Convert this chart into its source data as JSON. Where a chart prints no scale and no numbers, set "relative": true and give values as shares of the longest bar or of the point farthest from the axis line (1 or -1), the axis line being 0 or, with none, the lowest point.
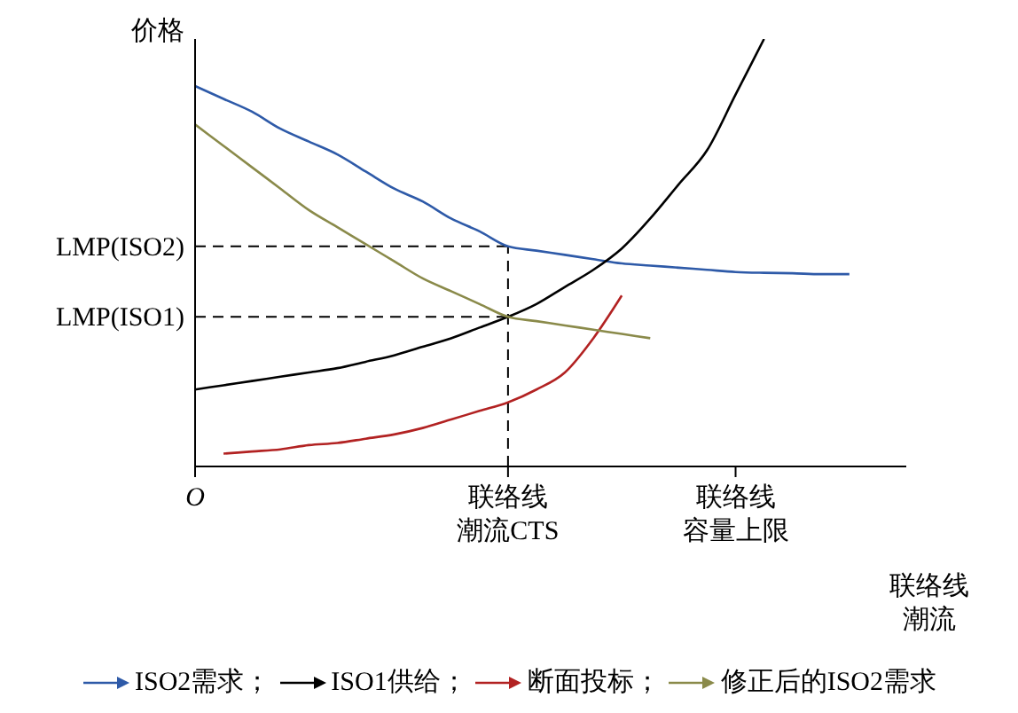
{
  "chart_data": {
    "type": "line",
    "relative": true,
    "ylabel": "价格",
    "xlabel": "联络线潮流",
    "marker": "none",
    "legend": "bottom",
    "grid": false,
    "categories": [
      "O",
      null,
      null,
      null,
      null,
      null,
      null,
      null,
      null,
      null,
      null,
      "联络线潮流CTS",
      null,
      null,
      null,
      null,
      null,
      null,
      null,
      "联络线容量上限",
      null,
      null,
      null,
      null,
      null,
      null
    ],
    "series": [
      {
        "name": "ISO2需求；",
        "color": "#2e5aa8",
        "values": [
          0.89,
          0.86,
          0.83,
          0.79,
          0.76,
          0.73,
          0.69,
          0.65,
          0.62,
          0.58,
          0.55,
          0.515,
          0.505,
          0.495,
          0.485,
          0.475,
          0.47,
          0.465,
          0.46,
          0.455,
          0.453,
          0.452,
          0.45,
          0.45,
          null,
          null
        ]
      },
      {
        "name": "ISO1供给；",
        "color": "#000000",
        "values": [
          0.18,
          0.19,
          0.2,
          0.21,
          0.22,
          0.23,
          0.245,
          0.26,
          0.28,
          0.3,
          0.325,
          0.35,
          0.38,
          0.42,
          0.46,
          0.51,
          0.58,
          0.66,
          0.74,
          0.87,
          1,
          null,
          null,
          null,
          null,
          null
        ]
      },
      {
        "name": "断面投标；",
        "color": "#b22222",
        "values": [
          null,
          0.03,
          0.035,
          0.04,
          0.05,
          0.055,
          0.065,
          0.075,
          0.09,
          0.11,
          0.13,
          0.15,
          0.18,
          0.22,
          0.3,
          0.4,
          null,
          null,
          null,
          null,
          null,
          null,
          null,
          null,
          null,
          null
        ]
      },
      {
        "name": "修正后的ISO2需求",
        "color": "#8a8a4a",
        "values": [
          0.8,
          0.75,
          0.7,
          0.65,
          0.6,
          0.56,
          0.52,
          0.48,
          0.44,
          0.41,
          0.38,
          0.35,
          0.34,
          0.33,
          0.32,
          0.31,
          0.3,
          null,
          null,
          null,
          null,
          null,
          null,
          null,
          null,
          null
        ]
      }
    ],
    "ref_lines": [
      {
        "axis": "y",
        "value": 0.515,
        "label": "LMP(ISO2)",
        "line_style": "dashed"
      },
      {
        "axis": "y",
        "value": 0.35,
        "label": "LMP(ISO1)",
        "line_style": "dashed"
      },
      {
        "axis": "x",
        "value": "联络线潮流CTS",
        "line_style": "dashed"
      }
    ]
  }
}
